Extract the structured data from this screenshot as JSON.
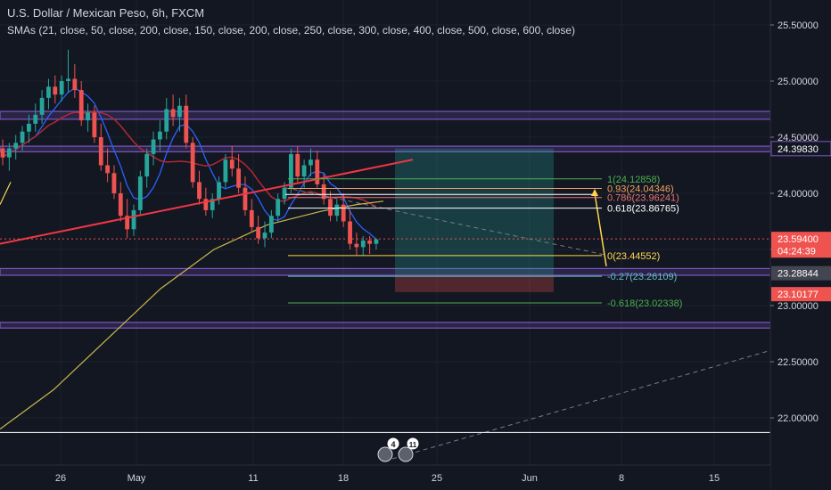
{
  "header": {
    "title": "U.S. Dollar / Mexican Peso, 6h, FXCM",
    "indicators": "SMAs (21, close, 50, close, 200, close, 150, close, 200, close, 250, close, 300, close, 400, close, 500, close, 600, close)"
  },
  "colors": {
    "background": "#131722",
    "up": "#26a69a",
    "down": "#ef5350",
    "zone": "#7e57c2",
    "trendline": "#f23645",
    "sma_blue": "#2962ff",
    "sma_red": "#b22833",
    "sma_yellow": "#c9b84a",
    "fib_green": "#4caf50",
    "fib_white": "#ffffff",
    "fib_yellow": "#ffd54f",
    "fib_teal": "#5ec2c7"
  },
  "chart_data": {
    "type": "candlestick",
    "ylim": [
      21.75,
      25.7
    ],
    "x_ticks": [
      "26",
      "May",
      "11",
      "18",
      "25",
      "Jun",
      "8",
      "15"
    ],
    "y_ticks": [
      "25.50000",
      "25.00000",
      "24.50000",
      "24.00000",
      "23.50000",
      "23.00000",
      "22.50000",
      "22.00000"
    ],
    "price_labels": [
      {
        "text": "24.39830",
        "value": 24.3983,
        "style": "outline"
      },
      {
        "text": "23.59400",
        "value": 23.594,
        "style": "red"
      },
      {
        "text": "04:24:39",
        "value": 23.49,
        "style": "red"
      },
      {
        "text": "23.28844",
        "value": 23.28844,
        "style": "grey"
      },
      {
        "text": "23.10177",
        "value": 23.10177,
        "style": "red"
      }
    ],
    "supply_demand_zones": [
      {
        "low": 24.66,
        "high": 24.73
      },
      {
        "low": 24.37,
        "high": 24.42
      },
      {
        "low": 23.27,
        "high": 23.33
      },
      {
        "low": 22.8,
        "high": 22.85
      }
    ],
    "fibonacci": [
      {
        "label": "1(24.12858)",
        "value": 24.12858,
        "color": "#4caf50"
      },
      {
        "label": "0.93(24.04346)",
        "value": 24.04346,
        "color": "#f0a35e"
      },
      {
        "label": "0.786(23.96241)",
        "value": 23.96241,
        "color": "#e57373"
      },
      {
        "label": "0.618(23.86765)",
        "value": 23.86765,
        "color": "#ffffff"
      },
      {
        "label": "0(23.44552)",
        "value": 23.44552,
        "color": "#ffd54f"
      },
      {
        "label": "-0.27(23.26109)",
        "value": 23.26109,
        "color": "#5ec2c7"
      },
      {
        "label": "-0.618(23.02338)",
        "value": 23.02338,
        "color": "#4caf50"
      }
    ],
    "position_box": {
      "target": 24.4,
      "entry": 23.27,
      "stop": 23.12
    },
    "white_levels": [
      23.99,
      21.87
    ],
    "candles": [
      [
        24.4,
        24.48,
        24.25,
        24.32
      ],
      [
        24.32,
        24.45,
        24.2,
        24.4
      ],
      [
        24.4,
        24.52,
        24.3,
        24.45
      ],
      [
        24.45,
        24.6,
        24.38,
        24.55
      ],
      [
        24.55,
        24.7,
        24.45,
        24.62
      ],
      [
        24.62,
        24.8,
        24.55,
        24.7
      ],
      [
        24.7,
        24.92,
        24.62,
        24.85
      ],
      [
        24.85,
        25.02,
        24.75,
        24.95
      ],
      [
        24.95,
        25.05,
        24.8,
        24.88
      ],
      [
        24.88,
        25.05,
        24.82,
        25.0
      ],
      [
        25.0,
        25.28,
        24.9,
        25.02
      ],
      [
        25.02,
        25.15,
        24.85,
        24.92
      ],
      [
        24.92,
        25.0,
        24.6,
        24.65
      ],
      [
        24.65,
        24.8,
        24.55,
        24.72
      ],
      [
        24.72,
        24.78,
        24.45,
        24.5
      ],
      [
        24.5,
        24.62,
        24.2,
        24.25
      ],
      [
        24.25,
        24.4,
        24.1,
        24.18
      ],
      [
        24.18,
        24.25,
        23.95,
        24.0
      ],
      [
        24.0,
        24.1,
        23.75,
        23.8
      ],
      [
        23.8,
        23.95,
        23.6,
        23.68
      ],
      [
        23.68,
        23.9,
        23.62,
        23.85
      ],
      [
        23.85,
        24.2,
        23.8,
        24.15
      ],
      [
        24.15,
        24.4,
        24.05,
        24.35
      ],
      [
        24.35,
        24.55,
        24.25,
        24.48
      ],
      [
        24.48,
        24.65,
        24.38,
        24.55
      ],
      [
        24.55,
        24.85,
        24.48,
        24.75
      ],
      [
        24.75,
        24.88,
        24.6,
        24.68
      ],
      [
        24.68,
        24.85,
        24.55,
        24.78
      ],
      [
        24.78,
        24.88,
        24.4,
        24.45
      ],
      [
        24.45,
        24.5,
        24.05,
        24.1
      ],
      [
        24.1,
        24.2,
        23.9,
        23.95
      ],
      [
        23.95,
        24.05,
        23.8,
        23.85
      ],
      [
        23.85,
        24.0,
        23.78,
        23.95
      ],
      [
        23.95,
        24.15,
        23.9,
        24.1
      ],
      [
        24.1,
        24.35,
        24.05,
        24.3
      ],
      [
        24.3,
        24.42,
        24.15,
        24.22
      ],
      [
        24.22,
        24.35,
        24.0,
        24.05
      ],
      [
        24.05,
        24.15,
        23.8,
        23.85
      ],
      [
        23.85,
        23.95,
        23.65,
        23.7
      ],
      [
        23.7,
        23.8,
        23.55,
        23.6
      ],
      [
        23.6,
        23.75,
        23.52,
        23.65
      ],
      [
        23.65,
        23.85,
        23.6,
        23.8
      ],
      [
        23.8,
        24.0,
        23.75,
        23.95
      ],
      [
        23.95,
        24.1,
        23.9,
        24.05
      ],
      [
        24.05,
        24.4,
        24.0,
        24.35
      ],
      [
        24.35,
        24.42,
        24.1,
        24.15
      ],
      [
        24.15,
        24.3,
        24.05,
        24.25
      ],
      [
        24.25,
        24.4,
        24.15,
        24.3
      ],
      [
        24.3,
        24.38,
        24.05,
        24.08
      ],
      [
        24.08,
        24.18,
        23.9,
        23.95
      ],
      [
        23.95,
        24.02,
        23.75,
        23.8
      ],
      [
        23.8,
        23.95,
        23.75,
        23.9
      ],
      [
        23.9,
        24.0,
        23.7,
        23.75
      ],
      [
        23.75,
        23.85,
        23.5,
        23.55
      ],
      [
        23.55,
        23.65,
        23.45,
        23.52
      ],
      [
        23.52,
        23.62,
        23.45,
        23.58
      ],
      [
        23.58,
        23.62,
        23.46,
        23.55
      ],
      [
        23.55,
        23.6,
        23.5,
        23.59
      ]
    ]
  }
}
